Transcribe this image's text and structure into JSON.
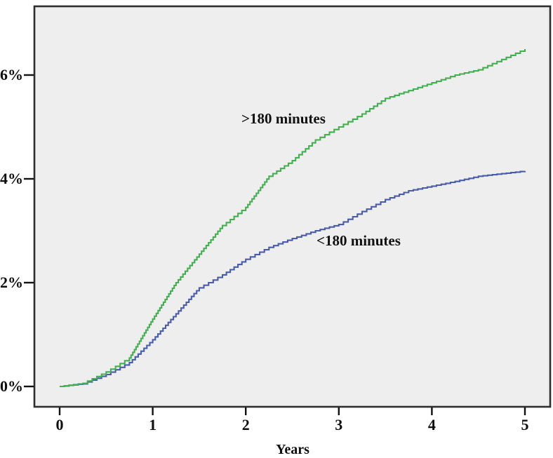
{
  "figure": {
    "xlabel": "Years",
    "annotations": {
      "above_curve": ">180 minutes",
      "below_curve": "<180 minutes"
    }
  },
  "chart_data": {
    "type": "line",
    "subtype": "cumulative-incidence-step",
    "title": "",
    "xlabel": "Years",
    "ylabel": "",
    "grid": false,
    "legend": "inline-annotations",
    "plot_bg": "#efeeee",
    "border_color": "#2e2e2e",
    "tick_color": "#111111",
    "xlim": [
      0,
      5.28
    ],
    "ylim": [
      0,
      7.35
    ],
    "x_ticks": [
      0,
      1,
      2,
      3,
      4,
      5
    ],
    "y_ticks": [
      {
        "value": 0,
        "label": "0%"
      },
      {
        "value": 2,
        "label": "2%"
      },
      {
        "value": 4,
        "label": "4%"
      },
      {
        "value": 6,
        "label": "6%"
      }
    ],
    "x": [
      0,
      0.25,
      0.5,
      0.75,
      1,
      1.25,
      1.5,
      1.75,
      2,
      2.25,
      2.5,
      2.75,
      3,
      3.25,
      3.5,
      3.75,
      4,
      4.25,
      4.5,
      4.75,
      5
    ],
    "series": [
      {
        "name": "<180 minutes",
        "color": "#4a5ca5",
        "values": [
          0,
          0.05,
          0.23,
          0.46,
          0.9,
          1.4,
          1.9,
          2.15,
          2.45,
          2.68,
          2.85,
          3.0,
          3.12,
          3.37,
          3.6,
          3.77,
          3.86,
          3.95,
          4.05,
          4.1,
          4.15
        ]
      },
      {
        "name": ">180 minutes",
        "color": "#45ad52",
        "values": [
          0,
          0.06,
          0.28,
          0.55,
          1.3,
          2.0,
          2.55,
          3.1,
          3.45,
          4.05,
          4.35,
          4.75,
          5.0,
          5.25,
          5.55,
          5.7,
          5.85,
          6.0,
          6.1,
          6.3,
          6.5
        ]
      }
    ]
  }
}
